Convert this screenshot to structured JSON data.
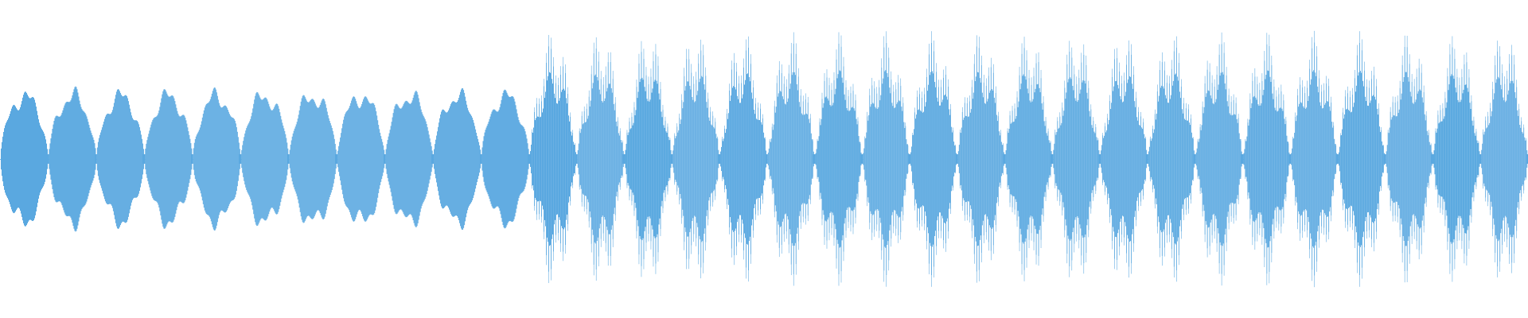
{
  "waveform": {
    "color": "#5aa8e0",
    "background": "#ffffff",
    "segments": [
      {
        "name": "lower-amplitude-section",
        "cycle_count": 11,
        "peak_amplitude": 0.58,
        "waveform_texture": "dense"
      },
      {
        "name": "higher-amplitude-section",
        "cycle_count": 21,
        "peak_amplitude": 0.92,
        "waveform_texture": "spiky"
      }
    ]
  }
}
